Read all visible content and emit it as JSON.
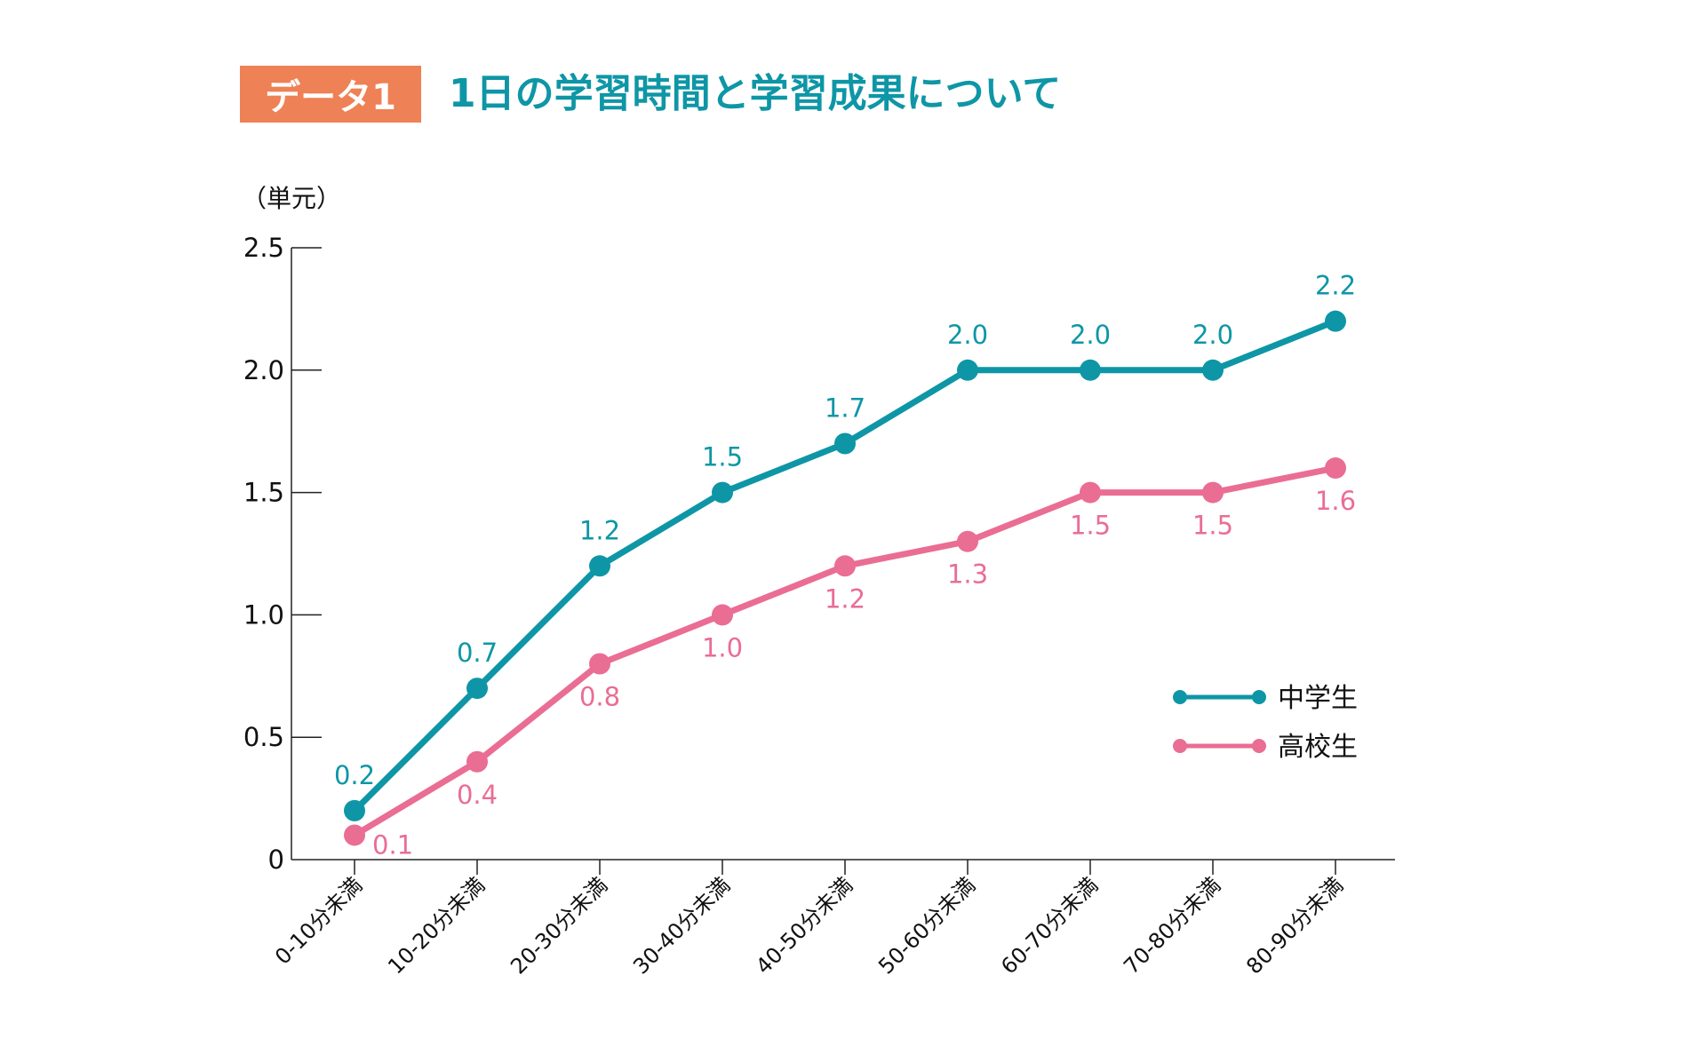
{
  "header": {
    "badge": "データ1",
    "title": "1日の学習時間と学習成果について"
  },
  "chart_data": {
    "type": "line",
    "title": "1日の学習時間と学習成果について",
    "ylabel": "（単元）",
    "xlabel": "",
    "ylim": [
      0,
      2.5
    ],
    "yticks": [
      "0",
      "0.5",
      "1.0",
      "1.5",
      "2.0",
      "2.5"
    ],
    "categories": [
      "0-10分未満",
      "10-20分未満",
      "20-30分未満",
      "30-40分未満",
      "40-50分未満",
      "50-60分未満",
      "60-70分未満",
      "70-80分未満",
      "80-90分未満"
    ],
    "series": [
      {
        "name": "中学生",
        "color": "#0e96a6",
        "values": [
          0.2,
          0.7,
          1.2,
          1.5,
          1.7,
          2.0,
          2.0,
          2.0,
          2.2
        ],
        "labels": [
          "0.2",
          "0.7",
          "1.2",
          "1.5",
          "1.7",
          "2.0",
          "2.0",
          "2.0",
          "2.2"
        ]
      },
      {
        "name": "高校生",
        "color": "#ea6d94",
        "values": [
          0.1,
          0.4,
          0.8,
          1.0,
          1.2,
          1.3,
          1.5,
          1.5,
          1.6
        ],
        "labels": [
          "0.1",
          "0.4",
          "0.8",
          "1.0",
          "1.2",
          "1.3",
          "1.5",
          "1.5",
          "1.6"
        ]
      }
    ],
    "grid": false,
    "legend": "right"
  }
}
